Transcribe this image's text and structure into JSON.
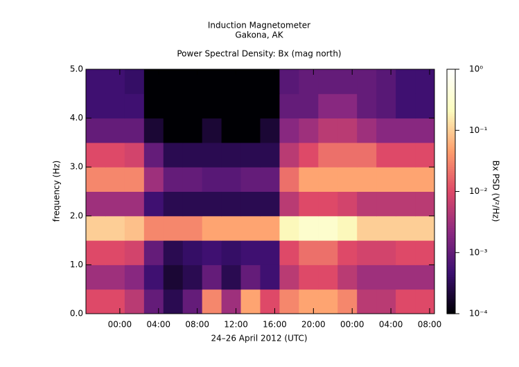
{
  "chart_data": {
    "type": "heatmap",
    "title": "Induction Magnetometer",
    "subtitle": "Gakona, AK",
    "plot_title": "Power Spectral Density: Bx (mag north)",
    "x_label": "24–26 April 2012 (UTC)",
    "y_label": "frequency (Hz)",
    "colorbar_label": "Bx PSD (V²/Hz)",
    "xlim": [
      "2012-04-24T20:30",
      "2012-04-26T08:30"
    ],
    "xticks": [
      {
        "value": "2012-04-25T00:00",
        "label": "00:00"
      },
      {
        "value": "2012-04-25T04:00",
        "label": "04:00"
      },
      {
        "value": "2012-04-25T08:00",
        "label": "08:00"
      },
      {
        "value": "2012-04-25T12:00",
        "label": "12:00"
      },
      {
        "value": "2012-04-25T16:00",
        "label": "16:00"
      },
      {
        "value": "2012-04-25T20:00",
        "label": "20:00"
      },
      {
        "value": "2012-04-26T00:00",
        "label": "00:00"
      },
      {
        "value": "2012-04-26T04:00",
        "label": "04:00"
      },
      {
        "value": "2012-04-26T08:00",
        "label": "08:00"
      }
    ],
    "ylim": [
      0,
      5
    ],
    "yticks": [
      {
        "value": 0,
        "label": "0.0"
      },
      {
        "value": 1,
        "label": "1.0"
      },
      {
        "value": 2,
        "label": "2.0"
      },
      {
        "value": 3,
        "label": "3.0"
      },
      {
        "value": 4,
        "label": "4.0"
      },
      {
        "value": 5,
        "label": "5.0"
      }
    ],
    "clim": [
      0.0001,
      1
    ],
    "color_log_scale": true,
    "cticks": [
      {
        "value": 0.0001,
        "label": "10⁻⁴"
      },
      {
        "value": 0.001,
        "label": "10⁻³"
      },
      {
        "value": 0.01,
        "label": "10⁻²"
      },
      {
        "value": 0.1,
        "label": "10⁻¹"
      },
      {
        "value": 1,
        "label": "10⁰"
      }
    ],
    "colorscale": [
      "#000004",
      "#3b0f70",
      "#8c2981",
      "#de4968",
      "#fe9f6d",
      "#fcfdbf",
      "#ffffff"
    ],
    "x_bins": [
      "2012-04-24T20:30",
      "2012-04-24T22:30",
      "2012-04-25T00:30",
      "2012-04-25T02:30",
      "2012-04-25T04:30",
      "2012-04-25T06:30",
      "2012-04-25T08:30",
      "2012-04-25T10:30",
      "2012-04-25T12:30",
      "2012-04-25T14:30",
      "2012-04-25T16:30",
      "2012-04-25T18:30",
      "2012-04-25T20:30",
      "2012-04-25T22:30",
      "2012-04-26T00:30",
      "2012-04-26T02:30",
      "2012-04-26T04:30",
      "2012-04-26T06:30",
      "2012-04-26T08:30"
    ],
    "y_bins": [
      0,
      0.5,
      1,
      1.5,
      2,
      2.5,
      3,
      3.5,
      4,
      4.5,
      5
    ],
    "z": [
      [
        0.01,
        0.01,
        0.005,
        0.001,
        0.0003,
        0.001,
        0.03,
        0.003,
        0.05,
        0.01,
        0.03,
        0.05,
        0.05,
        0.03,
        0.005,
        0.005,
        0.01,
        0.01
      ],
      [
        0.003,
        0.003,
        0.002,
        0.0005,
        0.0002,
        0.0003,
        0.001,
        0.0003,
        0.001,
        0.0005,
        0.005,
        0.01,
        0.01,
        0.005,
        0.003,
        0.003,
        0.003,
        0.003
      ],
      [
        0.01,
        0.01,
        0.008,
        0.001,
        0.0003,
        0.0004,
        0.0005,
        0.0004,
        0.0005,
        0.0005,
        0.01,
        0.02,
        0.02,
        0.01,
        0.008,
        0.008,
        0.01,
        0.01
      ],
      [
        0.1,
        0.1,
        0.08,
        0.03,
        0.03,
        0.03,
        0.05,
        0.05,
        0.05,
        0.05,
        0.2,
        0.3,
        0.3,
        0.2,
        0.1,
        0.1,
        0.1,
        0.1
      ],
      [
        0.003,
        0.003,
        0.003,
        0.0005,
        0.0003,
        0.0003,
        0.0003,
        0.0003,
        0.0003,
        0.0003,
        0.005,
        0.01,
        0.01,
        0.008,
        0.005,
        0.005,
        0.005,
        0.005
      ],
      [
        0.03,
        0.03,
        0.03,
        0.003,
        0.001,
        0.001,
        0.0008,
        0.0008,
        0.001,
        0.001,
        0.02,
        0.05,
        0.05,
        0.05,
        0.05,
        0.05,
        0.05,
        0.05
      ],
      [
        0.01,
        0.01,
        0.008,
        0.001,
        0.0003,
        0.0003,
        0.0003,
        0.0003,
        0.0003,
        0.0003,
        0.005,
        0.01,
        0.02,
        0.02,
        0.02,
        0.01,
        0.01,
        0.01
      ],
      [
        0.001,
        0.001,
        0.001,
        0.0002,
        0.0001,
        0.0001,
        0.0002,
        0.0001,
        0.0001,
        0.0002,
        0.002,
        0.003,
        0.005,
        0.005,
        0.003,
        0.002,
        0.002,
        0.002
      ],
      [
        0.0005,
        0.0005,
        0.0005,
        0.0001,
        0.0001,
        0.0001,
        0.0001,
        0.0001,
        0.0001,
        0.0001,
        0.001,
        0.001,
        0.002,
        0.002,
        0.001,
        0.0008,
        0.0005,
        0.0005
      ],
      [
        0.0005,
        0.0005,
        0.0004,
        0.0001,
        0.0001,
        0.0001,
        0.0001,
        0.0001,
        0.0001,
        0.0001,
        0.0008,
        0.001,
        0.001,
        0.001,
        0.001,
        0.0008,
        0.0005,
        0.0005
      ]
    ]
  }
}
